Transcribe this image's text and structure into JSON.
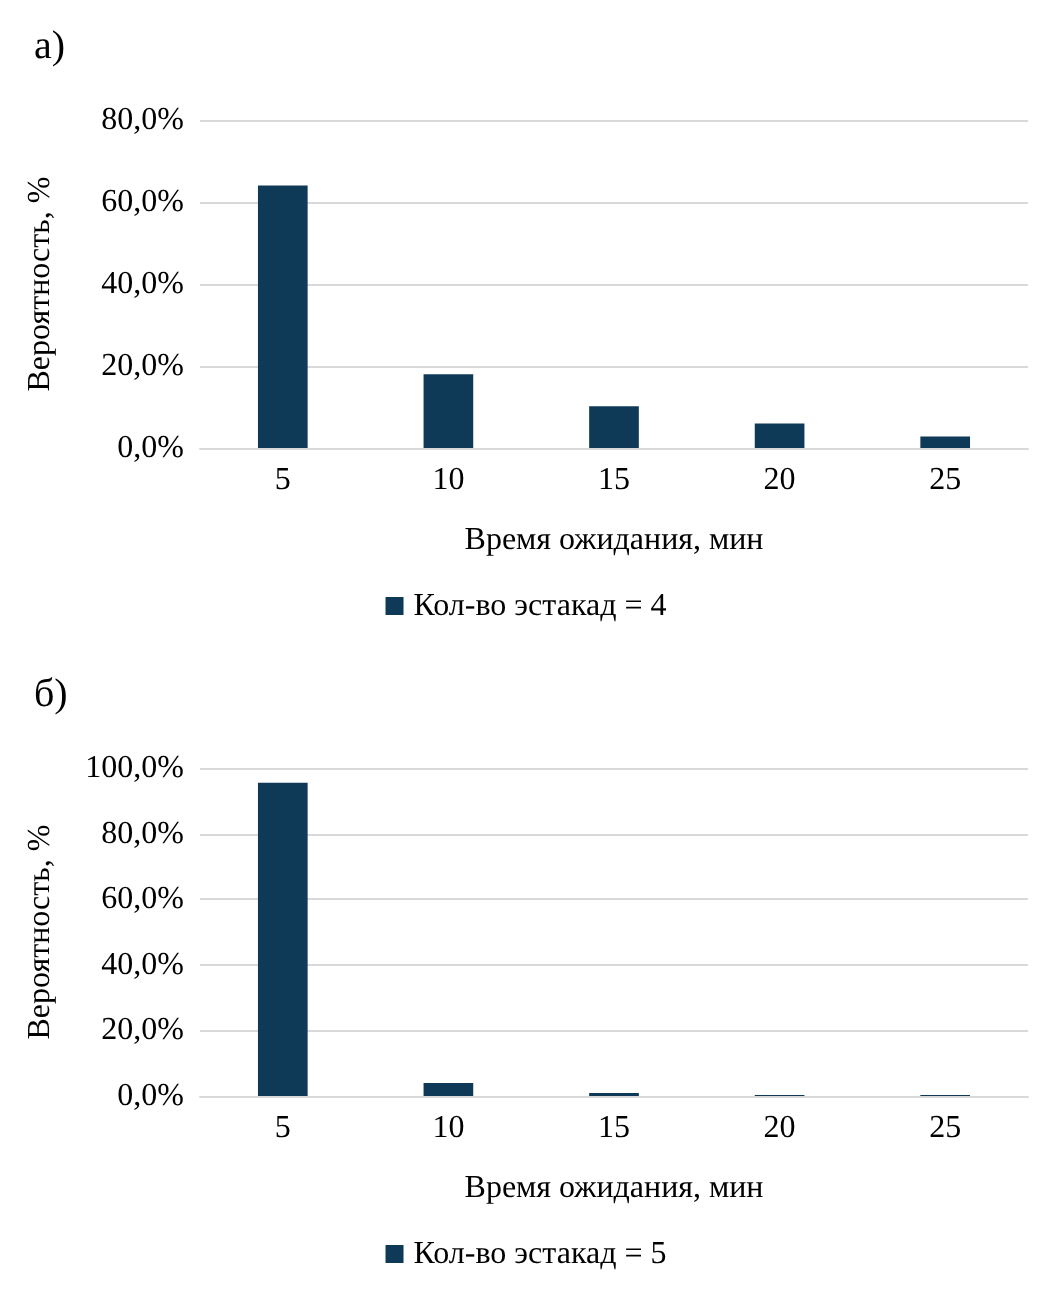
{
  "chart_data": [
    {
      "type": "bar",
      "title": "а)",
      "xlabel": "Время ожидания, мин",
      "ylabel": "Вероятность, %",
      "categories": [
        "5",
        "10",
        "15",
        "20",
        "25"
      ],
      "series": [
        {
          "name": "Кол-во эстакад = 4",
          "color": "#0e3a58",
          "values": [
            64,
            18,
            10.2,
            6,
            2.8
          ]
        }
      ],
      "ylim": [
        0,
        80
      ],
      "yticks": [
        {
          "value": 0,
          "label": "0,0%"
        },
        {
          "value": 20,
          "label": "20,0%"
        },
        {
          "value": 40,
          "label": "40,0%"
        },
        {
          "value": 60,
          "label": "60,0%"
        },
        {
          "value": 80,
          "label": "80,0%"
        }
      ],
      "grid": "y",
      "legend": "bottom"
    },
    {
      "type": "bar",
      "title": "б)",
      "xlabel": "Время ожидания, мин",
      "ylabel": "Вероятность, %",
      "categories": [
        "5",
        "10",
        "15",
        "20",
        "25"
      ],
      "series": [
        {
          "name": "Кол-во эстакад = 5",
          "color": "#0e3a58",
          "values": [
            95.5,
            4,
            0.9,
            0.3,
            0.3
          ]
        }
      ],
      "ylim": [
        0,
        100
      ],
      "yticks": [
        {
          "value": 0,
          "label": "0,0%"
        },
        {
          "value": 20,
          "label": "20,0%"
        },
        {
          "value": 40,
          "label": "40,0%"
        },
        {
          "value": 60,
          "label": "60,0%"
        },
        {
          "value": 80,
          "label": "80,0%"
        },
        {
          "value": 100,
          "label": "100,0%"
        }
      ],
      "grid": "y",
      "legend": "bottom"
    }
  ]
}
